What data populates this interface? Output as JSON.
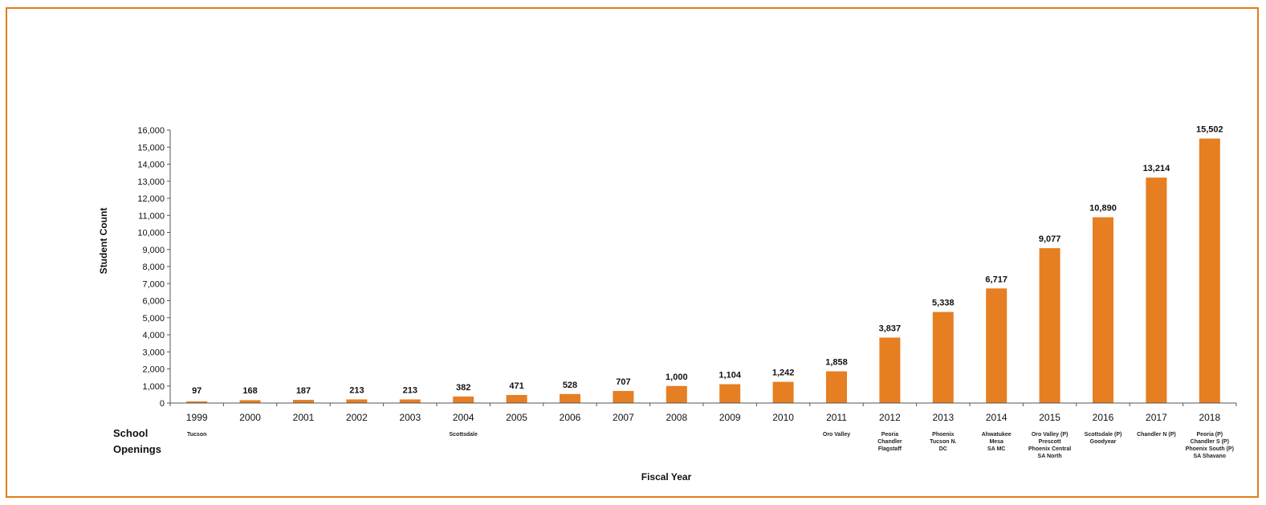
{
  "chart_data": {
    "type": "bar",
    "title": "",
    "xlabel": "Fiscal Year",
    "ylabel": "Student Count",
    "ylim": [
      0,
      16000
    ],
    "yticks": [
      "0",
      "1,000",
      "2,000",
      "3,000",
      "4,000",
      "5,000",
      "6,000",
      "7,000",
      "8,000",
      "9,000",
      "10,000",
      "11,000",
      "12,000",
      "13,000",
      "14,000",
      "15,000",
      "16,000"
    ],
    "grid": false,
    "bar_color": "#e67e22",
    "border_color": "#e07c1e",
    "categories": [
      "1999",
      "2000",
      "2001",
      "2002",
      "2003",
      "2004",
      "2005",
      "2006",
      "2007",
      "2008",
      "2009",
      "2010",
      "2011",
      "2012",
      "2013",
      "2014",
      "2015",
      "2016",
      "2017",
      "2018"
    ],
    "values": [
      97,
      168,
      187,
      213,
      213,
      382,
      471,
      528,
      707,
      1000,
      1104,
      1242,
      1858,
      3837,
      5338,
      6717,
      9077,
      10890,
      13214,
      15502
    ],
    "value_labels": [
      "97",
      "168",
      "187",
      "213",
      "213",
      "382",
      "471",
      "528",
      "707",
      "1,000",
      "1,104",
      "1,242",
      "1,858",
      "3,837",
      "5,338",
      "6,717",
      "9,077",
      "10,890",
      "13,214",
      "15,502"
    ],
    "openings_header": [
      "School",
      "Openings"
    ],
    "openings": [
      [
        "Tucson"
      ],
      [],
      [],
      [],
      [],
      [
        "Scottsdale"
      ],
      [],
      [],
      [],
      [],
      [],
      [],
      [
        "Oro Valley"
      ],
      [
        "Peoria",
        "Chandler",
        "Flagstaff"
      ],
      [
        "Phoenix",
        "Tucson N.",
        "DC"
      ],
      [
        "Ahwatukee",
        "Mesa",
        "SA MC"
      ],
      [
        "Oro Valley (P)",
        "Prescott",
        "Phoenix Central",
        "SA North"
      ],
      [
        "Scottsdale (P)",
        "Goodyear"
      ],
      [
        "Chandler N (P)"
      ],
      [
        "Peoria (P)",
        "Chandler S (P)",
        "Phoenix South (P)",
        "SA Shavano"
      ]
    ]
  }
}
